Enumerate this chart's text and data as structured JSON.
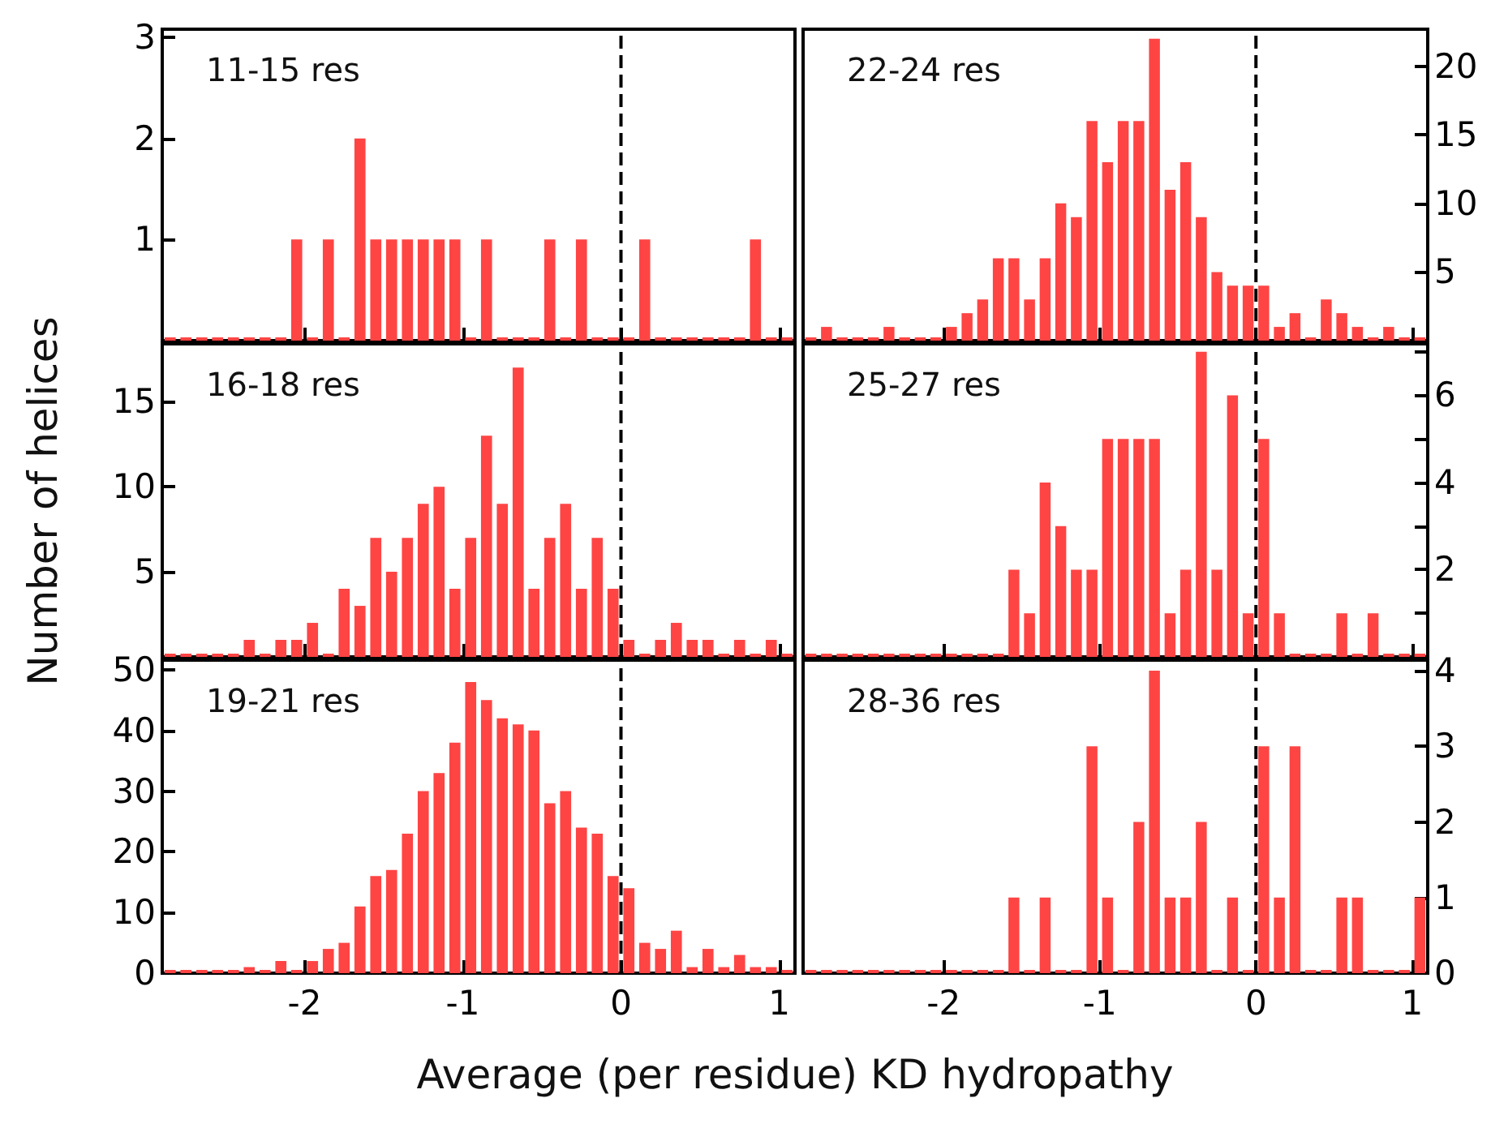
{
  "chart_data": [
    {
      "type": "histogram",
      "title": "11-15 res",
      "bins": [
        -2.9,
        -2.8,
        -2.7,
        -2.6,
        -2.5,
        -2.4,
        -2.3,
        -2.2,
        -2.1,
        -2.0,
        -1.9,
        -1.8,
        -1.7,
        -1.6,
        -1.5,
        -1.4,
        -1.3,
        -1.2,
        -1.1,
        -1.0,
        -0.9,
        -0.8,
        -0.7,
        -0.6,
        -0.5,
        -0.4,
        -0.3,
        -0.2,
        -0.1,
        0,
        0.1,
        0.2,
        0.3,
        0.4,
        0.5,
        0.6,
        0.7,
        0.8,
        0.9,
        1.0,
        1.1
      ],
      "values": [
        0,
        0,
        0,
        0,
        0,
        0,
        0,
        0,
        1,
        0,
        1,
        0,
        2,
        1,
        1,
        1,
        1,
        1,
        1,
        0,
        1,
        0,
        0,
        0,
        1,
        0,
        1,
        0,
        0,
        0,
        1,
        0,
        0,
        0,
        0,
        0,
        0,
        1,
        0,
        0
      ],
      "color": "#ff4444",
      "xlim": [
        -2.9,
        1.1
      ],
      "xticks": [
        -2,
        -1,
        0,
        1
      ],
      "ylim": [
        0,
        3.08
      ],
      "yticks": [
        1,
        2,
        3
      ],
      "tick_labels": "y",
      "ref_lines": [
        {
          "axis": "x",
          "value": 0,
          "color": "#000000",
          "line_style": "dashed"
        }
      ]
    },
    {
      "type": "histogram",
      "title": "22-24 res",
      "bins": [
        -2.9,
        -2.8,
        -2.7,
        -2.6,
        -2.5,
        -2.4,
        -2.3,
        -2.2,
        -2.1,
        -2.0,
        -1.9,
        -1.8,
        -1.7,
        -1.6,
        -1.5,
        -1.4,
        -1.3,
        -1.2,
        -1.1,
        -1.0,
        -0.9,
        -0.8,
        -0.7,
        -0.6,
        -0.5,
        -0.4,
        -0.3,
        -0.2,
        -0.1,
        0,
        0.1,
        0.2,
        0.3,
        0.4,
        0.5,
        0.6,
        0.7,
        0.8,
        0.9,
        1.0,
        1.1
      ],
      "values": [
        0,
        1,
        0,
        0,
        0,
        1,
        0,
        0,
        0,
        1,
        2,
        3,
        6,
        6,
        3,
        6,
        10,
        9,
        16,
        13,
        16,
        16,
        22,
        11,
        13,
        9,
        5,
        4,
        4,
        4,
        1,
        2,
        0,
        3,
        2,
        1,
        0,
        1,
        0,
        0
      ],
      "color": "#ff4444",
      "xlim": [
        -2.9,
        1.1
      ],
      "xticks": [
        -2,
        -1,
        0,
        1
      ],
      "ylim": [
        0,
        22.7
      ],
      "yticks": [
        5,
        10,
        15,
        20
      ],
      "tick_labels": "y",
      "ref_lines": [
        {
          "axis": "x",
          "value": 0,
          "color": "#000000",
          "line_style": "dashed"
        }
      ]
    },
    {
      "type": "histogram",
      "title": "16-18 res",
      "ylabel": "Number of helices",
      "bins": [
        -2.9,
        -2.8,
        -2.7,
        -2.6,
        -2.5,
        -2.4,
        -2.3,
        -2.2,
        -2.1,
        -2.0,
        -1.9,
        -1.8,
        -1.7,
        -1.6,
        -1.5,
        -1.4,
        -1.3,
        -1.2,
        -1.1,
        -1.0,
        -0.9,
        -0.8,
        -0.7,
        -0.6,
        -0.5,
        -0.4,
        -0.3,
        -0.2,
        -0.1,
        0,
        0.1,
        0.2,
        0.3,
        0.4,
        0.5,
        0.6,
        0.7,
        0.8,
        0.9,
        1.0,
        1.1
      ],
      "values": [
        0,
        0,
        0,
        0,
        0,
        1,
        0,
        1,
        1,
        2,
        0,
        4,
        3,
        7,
        5,
        7,
        9,
        10,
        4,
        7,
        13,
        9,
        17,
        4,
        7,
        9,
        4,
        7,
        4,
        1,
        0,
        1,
        2,
        1,
        1,
        0,
        1,
        0,
        1,
        0
      ],
      "color": "#ff4444",
      "xlim": [
        -2.9,
        1.1
      ],
      "xticks": [
        -2,
        -1,
        0,
        1
      ],
      "ylim": [
        0,
        18.4
      ],
      "yticks": [
        5,
        10,
        15
      ],
      "tick_labels": "y",
      "ref_lines": [
        {
          "axis": "x",
          "value": 0,
          "color": "#000000",
          "line_style": "dashed"
        }
      ]
    },
    {
      "type": "histogram",
      "title": "25-27 res",
      "bins": [
        -2.9,
        -2.8,
        -2.7,
        -2.6,
        -2.5,
        -2.4,
        -2.3,
        -2.2,
        -2.1,
        -2.0,
        -1.9,
        -1.8,
        -1.7,
        -1.6,
        -1.5,
        -1.4,
        -1.3,
        -1.2,
        -1.1,
        -1.0,
        -0.9,
        -0.8,
        -0.7,
        -0.6,
        -0.5,
        -0.4,
        -0.3,
        -0.2,
        -0.1,
        0,
        0.1,
        0.2,
        0.3,
        0.4,
        0.5,
        0.6,
        0.7,
        0.8,
        0.9,
        1.0,
        1.1
      ],
      "values": [
        0,
        0,
        0,
        0,
        0,
        0,
        0,
        0,
        0,
        0,
        0,
        0,
        0,
        2,
        1,
        4,
        3,
        2,
        2,
        5,
        5,
        5,
        5,
        1,
        2,
        7,
        2,
        6,
        1,
        5,
        1,
        0,
        0,
        0,
        1,
        0,
        1,
        0,
        0,
        0
      ],
      "color": "#ff4444",
      "xlim": [
        -2.9,
        1.1
      ],
      "xticks": [
        -2,
        -1,
        0,
        1
      ],
      "ylim": [
        0,
        7.18
      ],
      "yticks": [
        {
          "value": 1,
          "label": null
        },
        2,
        {
          "value": 3,
          "label": null
        },
        4,
        {
          "value": 5,
          "label": null
        },
        6,
        {
          "value": 7,
          "label": null
        }
      ],
      "tick_labels": "y",
      "ref_lines": [
        {
          "axis": "x",
          "value": 0,
          "color": "#000000",
          "line_style": "dashed"
        }
      ]
    },
    {
      "type": "histogram",
      "title": "19-21 res",
      "xlabel": "Average (per residue) KD hydropathy",
      "bins": [
        -2.9,
        -2.8,
        -2.7,
        -2.6,
        -2.5,
        -2.4,
        -2.3,
        -2.2,
        -2.1,
        -2.0,
        -1.9,
        -1.8,
        -1.7,
        -1.6,
        -1.5,
        -1.4,
        -1.3,
        -1.2,
        -1.1,
        -1.0,
        -0.9,
        -0.8,
        -0.7,
        -0.6,
        -0.5,
        -0.4,
        -0.3,
        -0.2,
        -0.1,
        0,
        0.1,
        0.2,
        0.3,
        0.4,
        0.5,
        0.6,
        0.7,
        0.8,
        0.9,
        1.0,
        1.1
      ],
      "values": [
        0,
        0,
        0,
        0,
        0,
        1,
        0,
        2,
        0,
        2,
        4,
        5,
        11,
        16,
        17,
        23,
        30,
        33,
        38,
        48,
        45,
        42,
        41,
        40,
        28,
        30,
        24,
        23,
        16,
        14,
        5,
        4,
        7,
        1,
        4,
        1,
        3,
        1,
        1,
        0
      ],
      "color": "#ff4444",
      "xlim": [
        -2.9,
        1.1
      ],
      "xticks": [
        -2,
        -1,
        0,
        1
      ],
      "ylim": [
        0,
        51.6
      ],
      "yticks": [
        0,
        10,
        20,
        30,
        40,
        50
      ],
      "ref_lines": [
        {
          "axis": "x",
          "value": 0,
          "color": "#000000",
          "line_style": "dashed"
        }
      ]
    },
    {
      "type": "histogram",
      "title": "28-36 res",
      "bins": [
        -2.9,
        -2.8,
        -2.7,
        -2.6,
        -2.5,
        -2.4,
        -2.3,
        -2.2,
        -2.1,
        -2.0,
        -1.9,
        -1.8,
        -1.7,
        -1.6,
        -1.5,
        -1.4,
        -1.3,
        -1.2,
        -1.1,
        -1.0,
        -0.9,
        -0.8,
        -0.7,
        -0.6,
        -0.5,
        -0.4,
        -0.3,
        -0.2,
        -0.1,
        0,
        0.1,
        0.2,
        0.3,
        0.4,
        0.5,
        0.6,
        0.7,
        0.8,
        0.9,
        1.0,
        1.1
      ],
      "values": [
        0,
        0,
        0,
        0,
        0,
        0,
        0,
        0,
        0,
        0,
        0,
        0,
        0,
        1,
        0,
        1,
        0,
        0,
        3,
        1,
        0,
        2,
        4,
        1,
        1,
        2,
        0,
        1,
        0,
        3,
        1,
        3,
        0,
        0,
        1,
        1,
        0,
        0,
        0,
        1
      ],
      "color": "#ff4444",
      "xlim": [
        -2.9,
        1.1
      ],
      "xticks": [
        -2,
        -1,
        0,
        1
      ],
      "ylim": [
        0,
        4.14
      ],
      "yticks": [
        0,
        1,
        2,
        3,
        4
      ],
      "ref_lines": [
        {
          "axis": "x",
          "value": 0,
          "color": "#000000",
          "line_style": "dashed"
        }
      ]
    }
  ]
}
